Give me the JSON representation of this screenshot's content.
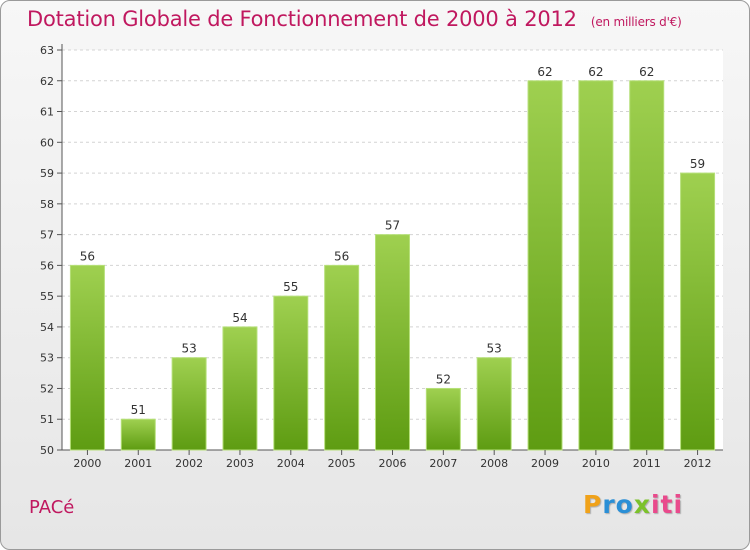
{
  "header": {
    "title": "Dotation Globale de Fonctionnement de 2000 à 2012",
    "unit": "(en milliers d'€)"
  },
  "commune": "PACé",
  "logo": {
    "l1": "P",
    "l2": "ro",
    "l3": "x",
    "l4": "iti"
  },
  "colors": {
    "bar_light": "#9fd050",
    "bar_dark": "#5e9c12",
    "title": "#c0185f"
  },
  "chart_data": {
    "type": "bar",
    "title": "Dotation Globale de Fonctionnement de 2000 à 2012",
    "subtitle": "(en milliers d'€)",
    "categories": [
      "2000",
      "2001",
      "2002",
      "2003",
      "2004",
      "2005",
      "2006",
      "2007",
      "2008",
      "2009",
      "2010",
      "2011",
      "2012"
    ],
    "values": [
      56,
      51,
      53,
      54,
      55,
      56,
      57,
      52,
      53,
      62,
      62,
      62,
      59
    ],
    "ylim": [
      50,
      63
    ],
    "yticks": [
      50,
      51,
      52,
      53,
      54,
      55,
      56,
      57,
      58,
      59,
      60,
      61,
      62,
      63
    ],
    "grid": true,
    "xlabel": "",
    "ylabel": ""
  }
}
